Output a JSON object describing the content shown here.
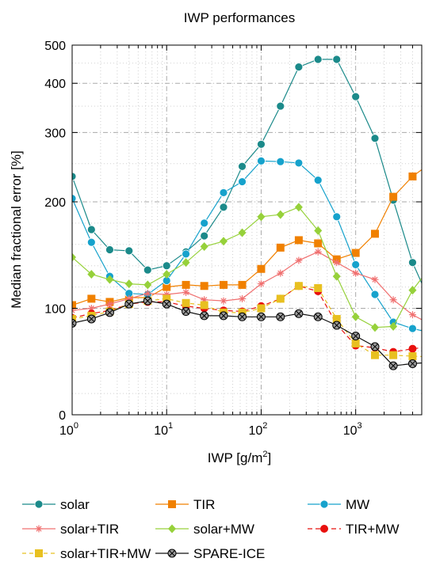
{
  "chart_data": {
    "type": "line",
    "title": "IWP performances",
    "xlabel": "IWP [g/m",
    "xlabel_sup": "2",
    "xlabel_end": "]",
    "ylabel": "Median fractional error [%]",
    "x_scale": "log",
    "y_scale": "piecewise (linear 0-200, log 200-500)",
    "xlim": [
      1,
      5000
    ],
    "ylim": [
      0,
      500
    ],
    "x_ticks": [
      {
        "base": "10",
        "exp": "0",
        "value": 1
      },
      {
        "base": "10",
        "exp": "1",
        "value": 10
      },
      {
        "base": "10",
        "exp": "2",
        "value": 100
      },
      {
        "base": "10",
        "exp": "3",
        "value": 1000
      }
    ],
    "y_ticks": [
      {
        "label": "0",
        "value": 0
      },
      {
        "label": "100",
        "value": 100
      },
      {
        "label": "200",
        "value": 200
      },
      {
        "label": "300",
        "value": 300
      },
      {
        "label": "400",
        "value": 400
      },
      {
        "label": "500",
        "value": 500
      }
    ],
    "grid": true,
    "legend_position": "bottom",
    "x": [
      1,
      1.6,
      2.5,
      4,
      6.3,
      10,
      16,
      25,
      40,
      63,
      100,
      160,
      250,
      400,
      630,
      1000,
      1600,
      2500,
      4000
    ],
    "series": [
      {
        "name": "solar",
        "color": "#1b8a8a",
        "marker": "circle",
        "dash": "",
        "values": [
          232,
          174,
          155,
          154,
          136,
          140,
          153,
          168,
          195,
          246,
          280,
          350,
          440,
          460,
          460,
          370,
          290,
          202,
          143
        ]
      },
      {
        "name": "TIR",
        "color": "#f08000",
        "marker": "square",
        "dash": "",
        "values": [
          103,
          109,
          106,
          110,
          110,
          120,
          122,
          121,
          122,
          122,
          137,
          157,
          164,
          161,
          146,
          152,
          170,
          206,
          232
        ]
      },
      {
        "name": "MW",
        "color": "#16a2cc",
        "marker": "circle",
        "dash": "",
        "values": [
          204,
          162,
          130,
          114,
          113,
          126,
          151,
          180,
          211,
          225,
          254,
          253,
          251,
          227,
          186,
          141,
          113,
          87,
          81
        ]
      },
      {
        "name": "solar+TIR",
        "color": "#f07070",
        "marker": "star",
        "dash": "",
        "values": [
          98,
          100,
          104,
          109,
          114,
          113,
          115,
          108,
          107,
          109,
          123,
          133,
          145,
          153,
          143,
          133,
          127,
          108,
          94
        ]
      },
      {
        "name": "solar+MW",
        "color": "#96d13a",
        "marker": "diamond",
        "dash": "",
        "values": [
          148,
          132,
          127,
          123,
          122,
          132,
          143,
          158,
          163,
          171,
          186,
          188,
          195,
          173,
          130,
          92,
          82,
          83,
          117
        ]
      },
      {
        "name": "TIR+MW",
        "color": "#e8100e",
        "marker": "dot",
        "dash": "6,4",
        "values": [
          91,
          95,
          98,
          104,
          106,
          106,
          102,
          100,
          98,
          97,
          102,
          109,
          121,
          116,
          85,
          65,
          63,
          59,
          62
        ]
      },
      {
        "name": "solar+TIR+MW",
        "color": "#e8c020",
        "marker": "square",
        "dash": "5,4",
        "values": [
          90,
          93,
          97,
          104,
          107,
          109,
          105,
          103,
          96,
          96,
          100,
          109,
          121,
          119,
          90,
          67,
          56,
          56,
          55
        ]
      },
      {
        "name": "SPARE-ICE",
        "color": "#111111",
        "marker": "crosscircle",
        "dash": "",
        "values": [
          86,
          90,
          96,
          104,
          107,
          104,
          97,
          93,
          93,
          92,
          92,
          92,
          95,
          92,
          84,
          74,
          64,
          46,
          48
        ]
      }
    ]
  }
}
